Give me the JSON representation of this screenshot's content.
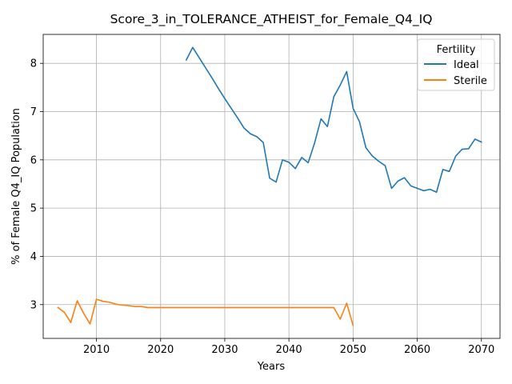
{
  "chart_data": {
    "type": "line",
    "title": "Score_3_in_TOLERANCE_ATHEIST_for_Female_Q4_IQ",
    "xlabel": "Years",
    "ylabel": "% of Female Q4_IQ Population",
    "xlim": [
      2001.7,
      2072.9
    ],
    "ylim": [
      2.3,
      8.6
    ],
    "xticks": [
      2010,
      2020,
      2030,
      2040,
      2050,
      2060,
      2070
    ],
    "yticks": [
      3,
      4,
      5,
      6,
      7,
      8
    ],
    "grid": true,
    "legend": {
      "title": "Fertility",
      "position": "top-right"
    },
    "series": [
      {
        "name": "Ideal",
        "color": "#1f77b4",
        "x": [
          2024,
          2025,
          2026,
          2027,
          2028,
          2029,
          2030,
          2031,
          2032,
          2033,
          2034,
          2035,
          2036,
          2037,
          2038,
          2039,
          2040,
          2041,
          2042,
          2043,
          2044,
          2045,
          2046,
          2047,
          2048,
          2049,
          2050,
          2051,
          2052,
          2053,
          2054,
          2055,
          2056,
          2057,
          2058,
          2059,
          2060,
          2061,
          2062,
          2063,
          2064,
          2065,
          2066,
          2067,
          2068,
          2069,
          2070
        ],
        "y": [
          8.07,
          8.33,
          8.12,
          7.91,
          7.7,
          7.48,
          7.27,
          7.07,
          6.87,
          6.66,
          6.54,
          6.48,
          6.36,
          5.62,
          5.54,
          6.0,
          5.95,
          5.82,
          6.05,
          5.94,
          6.35,
          6.85,
          6.69,
          7.31,
          7.55,
          7.83,
          7.07,
          6.79,
          6.25,
          6.08,
          5.97,
          5.88,
          5.41,
          5.56,
          5.63,
          5.46,
          5.41,
          5.36,
          5.39,
          5.33,
          5.8,
          5.76,
          6.08,
          6.22,
          6.23,
          6.43,
          6.37
        ]
      },
      {
        "name": "Sterile",
        "color": "#ff7f0e",
        "x": [
          2004,
          2005,
          2006,
          2007,
          2008,
          2009,
          2010,
          2011,
          2012,
          2013,
          2014,
          2015,
          2016,
          2017,
          2018,
          2019,
          2020,
          2021,
          2022,
          2023,
          2024,
          2025,
          2026,
          2027,
          2028,
          2029,
          2030,
          2031,
          2032,
          2033,
          2034,
          2035,
          2036,
          2037,
          2038,
          2039,
          2040,
          2041,
          2042,
          2043,
          2044,
          2045,
          2046,
          2047,
          2048,
          2049,
          2050
        ],
        "y": [
          2.94,
          2.84,
          2.63,
          3.08,
          2.82,
          2.6,
          3.11,
          3.07,
          3.05,
          3.01,
          2.99,
          2.98,
          2.96,
          2.96,
          2.94,
          2.94,
          2.94,
          2.94,
          2.94,
          2.94,
          2.94,
          2.94,
          2.94,
          2.94,
          2.94,
          2.94,
          2.94,
          2.94,
          2.94,
          2.94,
          2.94,
          2.94,
          2.94,
          2.94,
          2.94,
          2.94,
          2.94,
          2.94,
          2.94,
          2.94,
          2.94,
          2.94,
          2.94,
          2.94,
          2.7,
          3.03,
          2.57
        ]
      }
    ]
  }
}
